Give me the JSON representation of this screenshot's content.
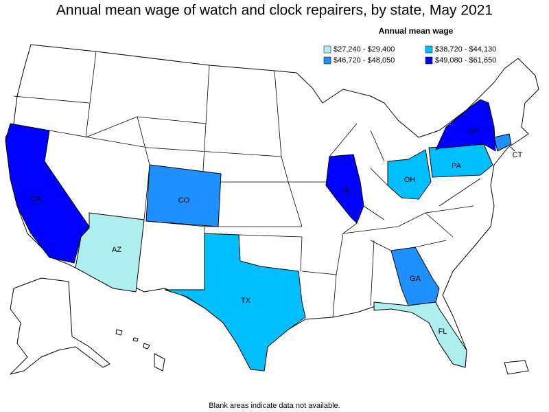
{
  "title": "Annual mean wage of watch and clock repairers, by state, May 2021",
  "legend": {
    "title": "Annual mean wage",
    "items": [
      {
        "label": "$27,240 - $29,400",
        "color": "#afeeee"
      },
      {
        "label": "$38,720 - $44,130",
        "color": "#00bfff"
      },
      {
        "label": "$46,720 - $48,050",
        "color": "#1e90ff"
      },
      {
        "label": "$49,080 - $61,650",
        "color": "#0000ff"
      }
    ]
  },
  "states": [
    {
      "label": "CA",
      "color": "#0000ff"
    },
    {
      "label": "AZ",
      "color": "#afeeee"
    },
    {
      "label": "CO",
      "color": "#1e90ff"
    },
    {
      "label": "TX",
      "color": "#00bfff"
    },
    {
      "label": "IL",
      "color": "#0000ff"
    },
    {
      "label": "OH",
      "color": "#00bfff"
    },
    {
      "label": "PA",
      "color": "#00bfff"
    },
    {
      "label": "NY",
      "color": "#0000ff"
    },
    {
      "label": "CT",
      "color": "#1e90ff"
    },
    {
      "label": "GA",
      "color": "#1e90ff"
    },
    {
      "label": "FL",
      "color": "#afeeee"
    }
  ],
  "footnote": "Blank areas indicate data not available."
}
